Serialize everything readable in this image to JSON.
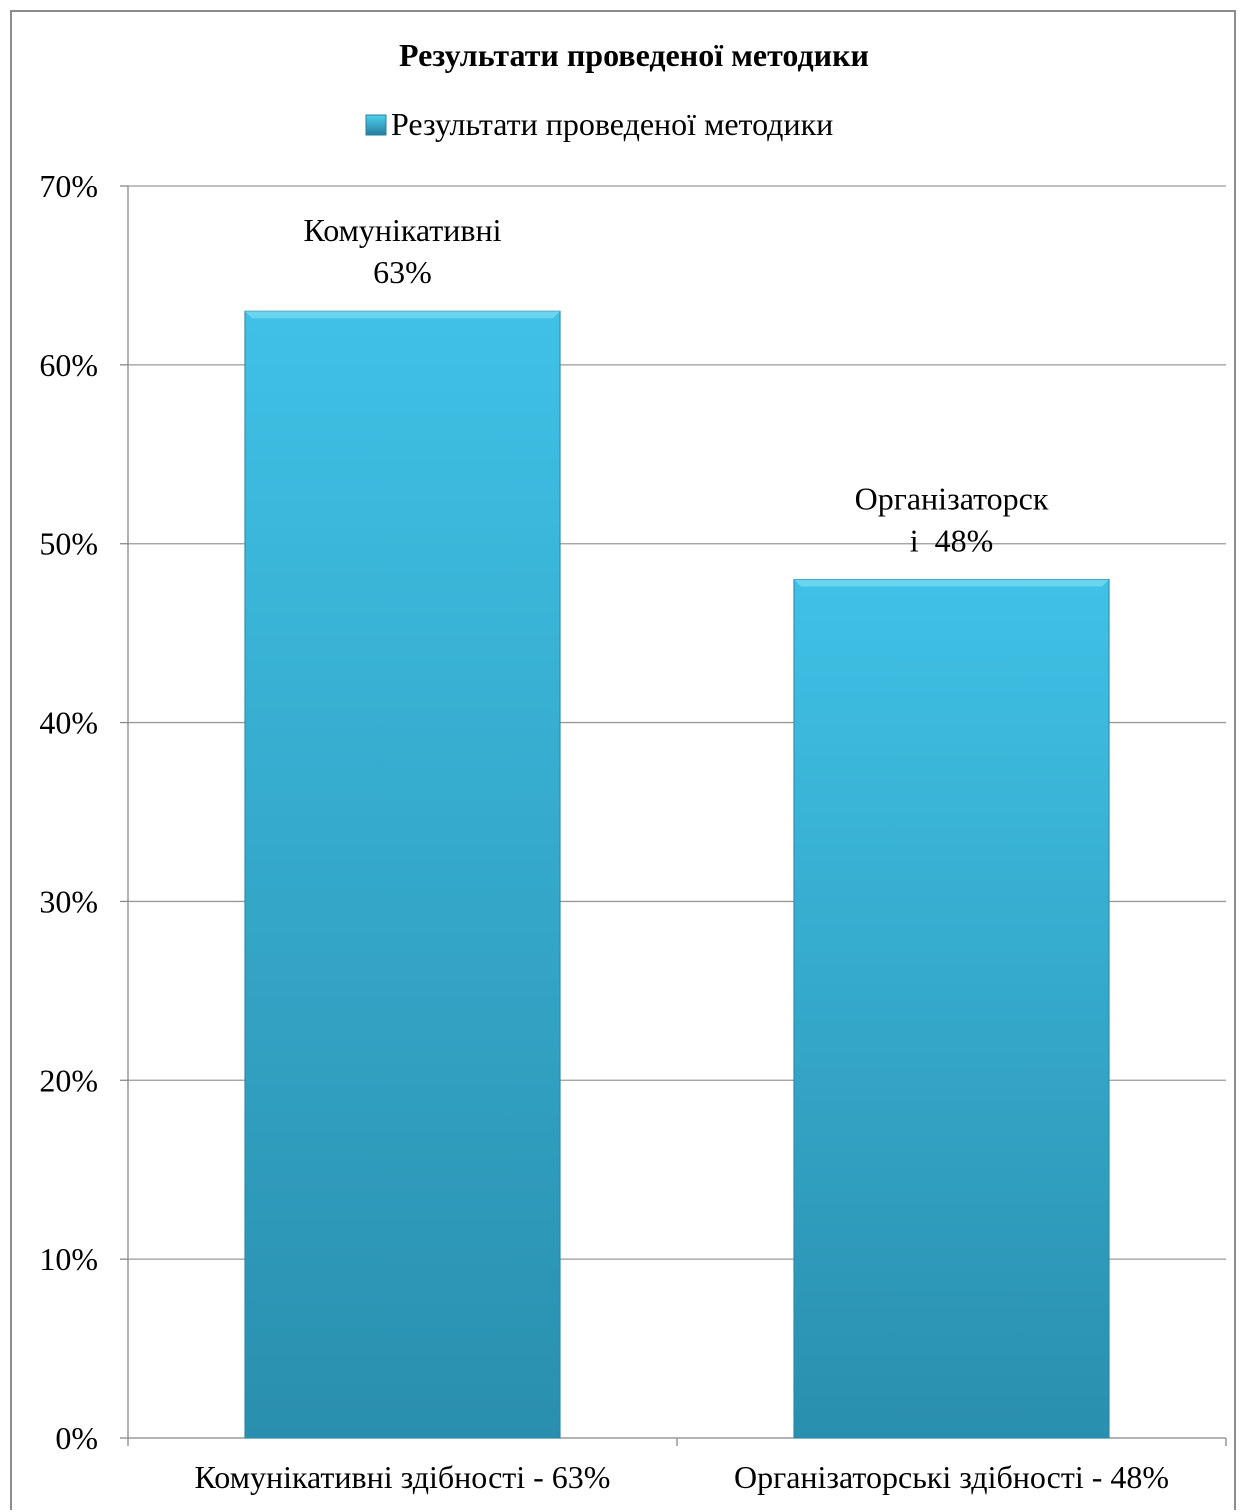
{
  "chart_data": {
    "type": "bar",
    "title": "Результати проведеної методики",
    "categories": [
      "Комунікативні здібності - 63%",
      "Організаторські здібності - 48%"
    ],
    "series": [
      {
        "name": "Результати проведеної методики",
        "values": [
          63,
          48
        ],
        "data_labels": [
          [
            "Комунікативні",
            "63%"
          ],
          [
            "Організаторск",
            "і  48%"
          ]
        ]
      }
    ],
    "ylim": [
      0,
      70
    ],
    "yticks": [
      "0%",
      "10%",
      "20%",
      "30%",
      "40%",
      "50%",
      "60%",
      "70%"
    ],
    "grid": true,
    "legend_position": "top",
    "colors": {
      "bar_top": "#3fc1e6",
      "bar_bottom": "#2a8fae",
      "grid": "#9a9a9a"
    }
  }
}
